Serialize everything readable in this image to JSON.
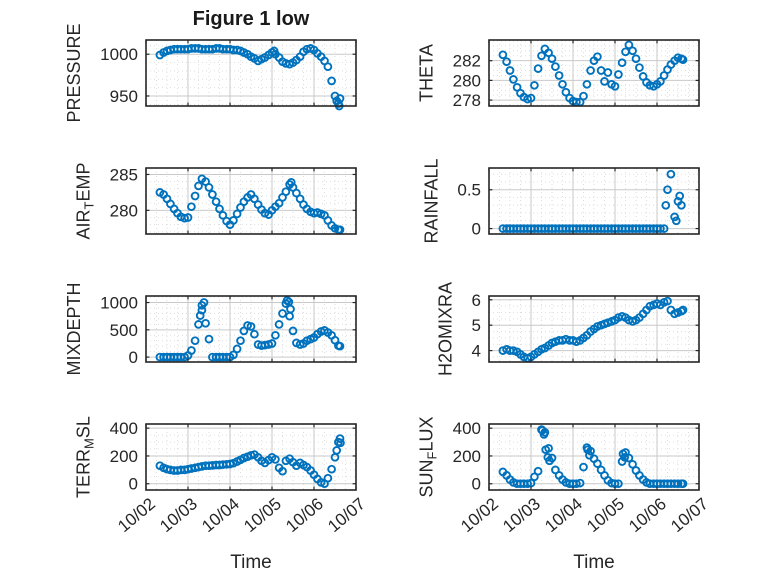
{
  "figure": {
    "title": "Figure 1 low",
    "xlabel": "Time",
    "marker_color": "#0072BD",
    "axis_color": "#262626",
    "grid_color": "#c9c9c9",
    "minor_grid_color": "#dedede",
    "background": "#ffffff"
  },
  "chart_data": {
    "type": "scatter",
    "layout": {
      "rows": 4,
      "cols": 2,
      "order": "row-major"
    },
    "marker": "open-circle",
    "grid": true,
    "minor_grid": true,
    "x_unit": "days since 10/02 00:00",
    "xlim": [
      0,
      5
    ],
    "xticks": [
      0,
      1,
      2,
      3,
      4,
      5
    ],
    "xtick_labels": [
      "10/02",
      "10/03",
      "10/04",
      "10/05",
      "10/06",
      "10/07"
    ],
    "xlabel": "Time",
    "x": [
      0.33,
      0.42,
      0.5,
      0.58,
      0.67,
      0.75,
      0.83,
      0.92,
      1,
      1.08,
      1.17,
      1.25,
      1.33,
      1.42,
      1.5,
      1.58,
      1.67,
      1.75,
      1.83,
      1.92,
      2,
      2.08,
      2.17,
      2.25,
      2.33,
      2.42,
      2.5,
      2.58,
      2.67,
      2.75,
      2.83,
      2.92,
      3,
      3.08,
      3.17,
      3.25,
      3.33,
      3.42,
      3.5,
      3.58,
      3.67,
      3.75,
      3.83,
      3.92,
      4,
      4.08,
      4.17,
      4.25,
      4.33,
      4.42,
      4.5,
      4.58
    ],
    "subplots": [
      {
        "name": "PRESSURE",
        "id": "pressure",
        "label_parts": [
          [
            "PRESSURE",
            false
          ]
        ],
        "ylim": [
          938,
          1017
        ],
        "yticks": [
          950,
          1000
        ],
        "yminor_step": 10,
        "y": [
          999,
          1002,
          1004,
          1005,
          1006,
          1006,
          1006,
          1006,
          1006,
          1007,
          1007,
          1007,
          1006,
          1006,
          1006,
          1006,
          1007,
          1007,
          1006,
          1006,
          1006,
          1005,
          1005,
          1004,
          1002,
          1000,
          997,
          995,
          992,
          994,
          996,
          999,
          1002,
          1000,
          996,
          991,
          989,
          988,
          990,
          993,
          997,
          1003,
          1006,
          1007,
          1005,
          1001,
          997,
          992,
          985,
          968,
          950,
          941
        ],
        "extra": [
          [
            3.05,
            1004
          ],
          [
            4.54,
            944
          ],
          [
            4.6,
            938
          ],
          [
            4.62,
            947
          ]
        ]
      },
      {
        "name": "THETA",
        "id": "theta",
        "label_parts": [
          [
            "THETA",
            false
          ]
        ],
        "ylim": [
          277.4,
          284.1
        ],
        "yticks": [
          278,
          280,
          282
        ],
        "yminor_step": 0.5,
        "y": [
          282.6,
          281.9,
          281,
          280.1,
          279.3,
          278.7,
          278.3,
          278.1,
          278.2,
          279.5,
          281.2,
          282.5,
          283.2,
          282.8,
          282.2,
          281.4,
          280.5,
          279.6,
          278.8,
          278.2,
          277.9,
          277.8,
          277.8,
          278.4,
          279.6,
          281,
          282,
          282.4,
          281,
          279.9,
          280.8,
          279.6,
          279.4,
          280.6,
          281.8,
          282.9,
          283.6,
          283,
          282.2,
          281.3,
          280.4,
          279.8,
          279.5,
          279.4,
          279.6,
          279.9,
          280.5,
          281.1,
          281.6,
          282,
          282.3,
          282.2
        ],
        "extra": [
          [
            4.62,
            282.1
          ]
        ]
      },
      {
        "name": "AIR_TEMP",
        "id": "air-temp",
        "label_parts": [
          [
            "AIR",
            false
          ],
          [
            "T",
            true
          ],
          [
            "EMP",
            false
          ]
        ],
        "ylim": [
          276.7,
          285.9
        ],
        "yticks": [
          280,
          285
        ],
        "yminor_step": 1,
        "y": [
          282.5,
          282.2,
          281.6,
          280.9,
          280.2,
          279.6,
          279.1,
          278.9,
          279,
          280.5,
          282,
          283.4,
          284.4,
          284,
          283.2,
          282.2,
          281.2,
          280.2,
          279.3,
          278.5,
          278,
          278.6,
          279.5,
          280.4,
          281.2,
          281.8,
          282.2,
          281.6,
          280.8,
          280.1,
          279.6,
          279.4,
          280,
          280.5,
          281,
          281.8,
          282.6,
          283.6,
          283.2,
          282.4,
          281.6,
          280.8,
          280.2,
          279.8,
          279.6,
          279.7,
          279.5,
          279.3,
          278.6,
          277.9,
          277.5,
          277.3
        ],
        "extra": [
          [
            3.46,
            283.9
          ],
          [
            4.62,
            277.3
          ]
        ]
      },
      {
        "name": "RAINFALL",
        "id": "rainfall",
        "label_parts": [
          [
            "RAINFALL",
            false
          ]
        ],
        "ylim": [
          -0.07,
          0.78
        ],
        "yticks": [
          0,
          0.5
        ],
        "yminor_step": 0.1,
        "y": [
          0,
          0,
          0,
          0,
          0,
          0,
          0,
          0,
          0,
          0,
          0,
          0,
          0,
          0,
          0,
          0,
          0,
          0,
          0,
          0,
          0,
          0,
          0,
          0,
          0,
          0,
          0,
          0,
          0,
          0,
          0,
          0,
          0,
          0,
          0,
          0,
          0,
          0,
          0,
          0,
          0,
          0,
          0,
          0,
          0,
          0,
          0,
          0.5,
          0.7,
          0.15,
          0.35,
          0.3
        ],
        "extra": [
          [
            4.21,
            0.3
          ],
          [
            4.46,
            0.1
          ],
          [
            4.54,
            0.42
          ]
        ]
      },
      {
        "name": "MIXDEPTH",
        "id": "mixdepth",
        "label_parts": [
          [
            "MIXDEPTH",
            false
          ]
        ],
        "ylim": [
          -90,
          1120
        ],
        "yticks": [
          0,
          500,
          1000
        ],
        "yminor_step": 100,
        "y": [
          0,
          0,
          0,
          0,
          0,
          0,
          0,
          0,
          30,
          120,
          300,
          600,
          950,
          620,
          330,
          0,
          0,
          0,
          0,
          0,
          0,
          40,
          150,
          300,
          480,
          580,
          560,
          420,
          230,
          210,
          220,
          230,
          250,
          400,
          600,
          800,
          980,
          750,
          480,
          260,
          230,
          250,
          300,
          330,
          360,
          420,
          470,
          490,
          450,
          400,
          310,
          210
        ],
        "extra": [
          [
            1.29,
            760
          ],
          [
            1.33,
            860
          ],
          [
            1.38,
            1000
          ],
          [
            3.36,
            1040
          ],
          [
            3.4,
            1010
          ],
          [
            3.44,
            880
          ],
          [
            4.62,
            200
          ]
        ]
      },
      {
        "name": "H2OMIXRA",
        "id": "h2omixra",
        "label_parts": [
          [
            "H2OMIXRA",
            false
          ]
        ],
        "ylim": [
          3.55,
          6.15
        ],
        "yticks": [
          4,
          5,
          6
        ],
        "yminor_step": 0.25,
        "y": [
          4,
          4.05,
          4,
          4,
          3.95,
          3.85,
          3.75,
          3.7,
          3.75,
          3.85,
          3.95,
          4.05,
          4.1,
          4.2,
          4.3,
          4.35,
          4.4,
          4.4,
          4.45,
          4.4,
          4.4,
          4.35,
          4.4,
          4.5,
          4.6,
          4.75,
          4.85,
          4.95,
          5,
          5.05,
          5.1,
          5.15,
          5.2,
          5.3,
          5.35,
          5.3,
          5.2,
          5.15,
          5.2,
          5.3,
          5.45,
          5.6,
          5.75,
          5.8,
          5.85,
          5.8,
          5.9,
          5.95,
          5.6,
          5.45,
          5.5,
          5.55
        ],
        "extra": [
          [
            4.62,
            5.6
          ]
        ]
      },
      {
        "name": "TERR_MSL",
        "id": "terr-msl",
        "label_parts": [
          [
            "TERR",
            false
          ],
          [
            "M",
            true
          ],
          [
            "SL",
            false
          ]
        ],
        "ylim": [
          -45,
          430
        ],
        "yticks": [
          0,
          200,
          400
        ],
        "yminor_step": 50,
        "y": [
          130,
          115,
          105,
          100,
          95,
          95,
          100,
          100,
          105,
          110,
          115,
          120,
          125,
          130,
          130,
          132,
          135,
          135,
          138,
          140,
          142,
          148,
          160,
          172,
          185,
          195,
          205,
          210,
          190,
          165,
          150,
          170,
          190,
          175,
          115,
          90,
          165,
          180,
          155,
          130,
          150,
          135,
          120,
          95,
          65,
          35,
          10,
          0,
          40,
          105,
          190,
          300
        ],
        "extra": [
          [
            4.54,
            240
          ],
          [
            4.62,
            325
          ],
          [
            4.63,
            295
          ]
        ]
      },
      {
        "name": "SUN_FLUX",
        "id": "sun-flux",
        "label_parts": [
          [
            "SUN",
            false
          ],
          [
            "F",
            true
          ],
          [
            "LUX",
            false
          ]
        ],
        "ylim": [
          -45,
          430
        ],
        "yticks": [
          0,
          200,
          400
        ],
        "yminor_step": 50,
        "y": [
          85,
          60,
          30,
          10,
          0,
          0,
          0,
          0,
          5,
          50,
          90,
          390,
          370,
          255,
          185,
          100,
          60,
          30,
          10,
          0,
          0,
          0,
          5,
          120,
          260,
          235,
          180,
          145,
          100,
          60,
          25,
          5,
          0,
          0,
          160,
          225,
          185,
          140,
          95,
          60,
          30,
          10,
          0,
          0,
          0,
          0,
          0,
          0,
          0,
          0,
          0,
          0
        ],
        "extra": [
          [
            1.27,
            385
          ],
          [
            1.31,
            355
          ],
          [
            1.35,
            245
          ],
          [
            1.4,
            190
          ],
          [
            1.44,
            165
          ],
          [
            2.35,
            245
          ],
          [
            2.39,
            205
          ],
          [
            3.19,
            215
          ],
          [
            3.23,
            190
          ],
          [
            4.62,
            0
          ]
        ]
      }
    ]
  }
}
